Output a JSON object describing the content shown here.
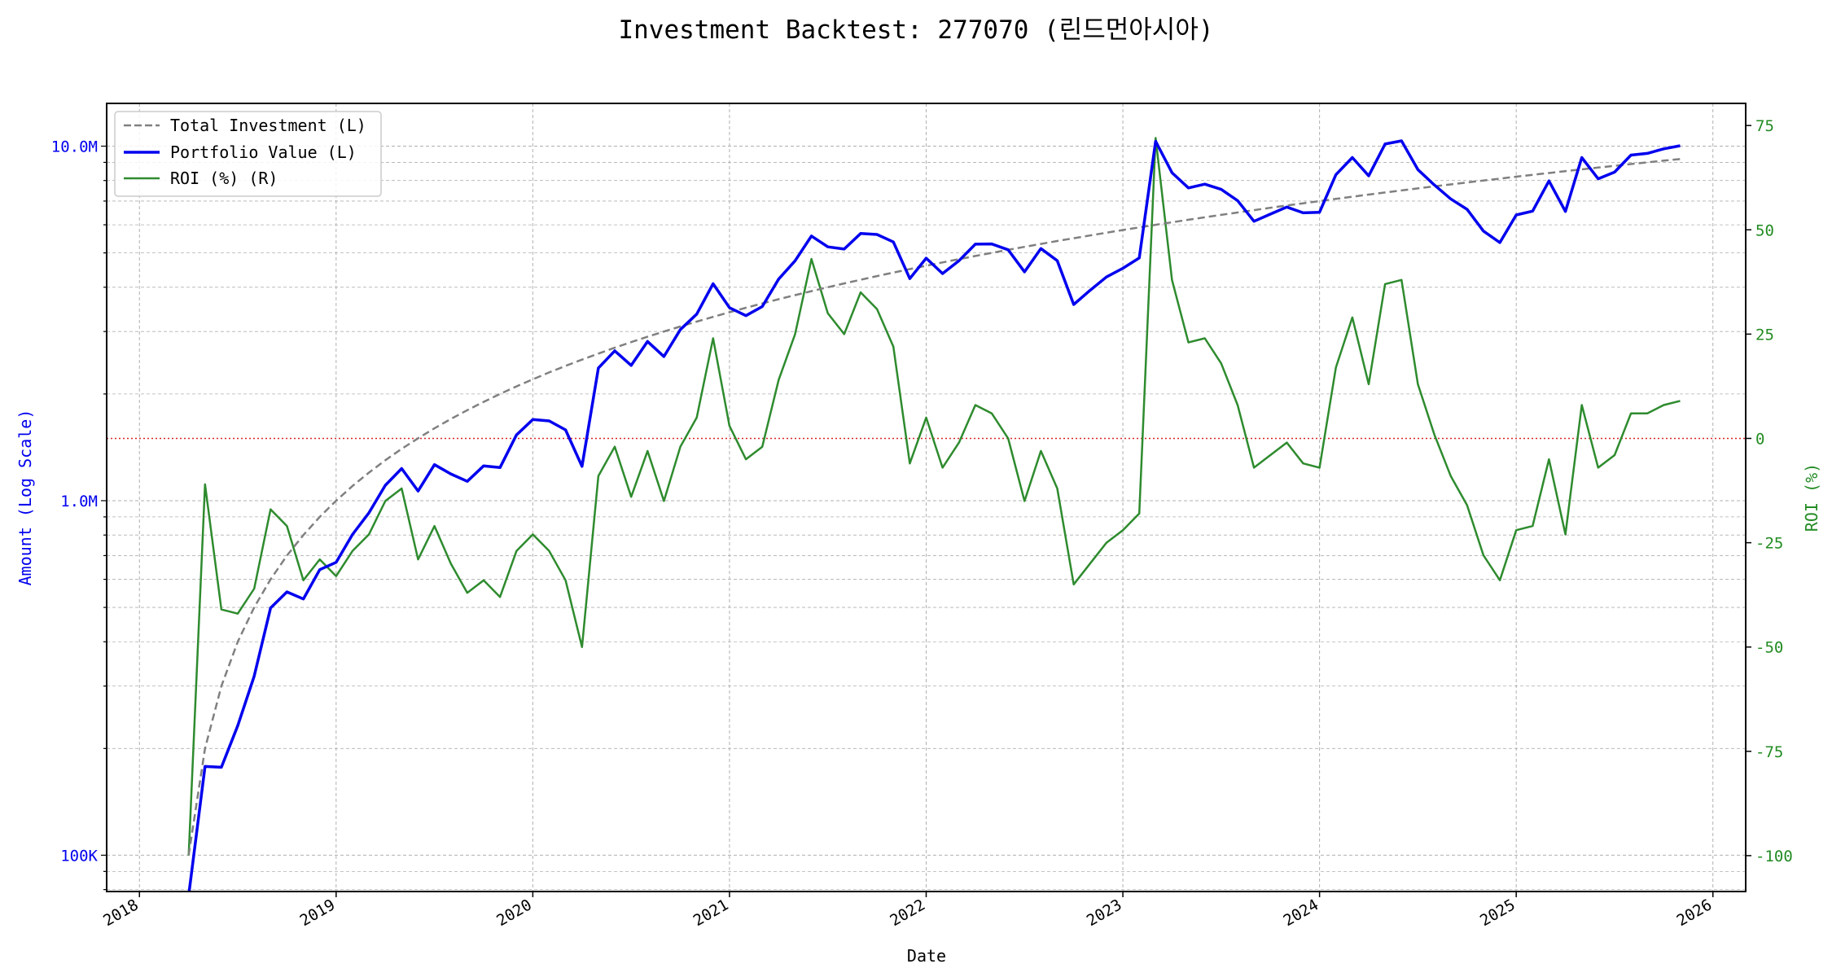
{
  "chart_data": {
    "type": "line",
    "title": "Investment Backtest: 277070 (린드먼아시아)",
    "xlabel": "Date",
    "ylabel_left": "Amount (Log Scale)",
    "ylabel_right": "ROI (%)",
    "left_scale": "log",
    "xlim": [
      "2017-11",
      "2026-03"
    ],
    "ylim_left": [
      79000,
      13200000
    ],
    "ylim_right": [
      -108.6,
      80.3
    ],
    "grid": true,
    "legend_placement": "top-left",
    "x_ticks": [
      "2018",
      "2019",
      "2020",
      "2021",
      "2022",
      "2023",
      "2024",
      "2025",
      "2026"
    ],
    "y_ticks_left": [
      {
        "value": 100000,
        "label": "100K"
      },
      {
        "value": 1000000,
        "label": "1.0M"
      },
      {
        "value": 10000000,
        "label": "10.0M"
      }
    ],
    "y_ticks_right": [
      -100,
      -75,
      -50,
      -25,
      0,
      25,
      50,
      75
    ],
    "reference_line": {
      "axis": "right",
      "value": 0,
      "color": "#d62728",
      "style": "dotted"
    },
    "colors": {
      "total_investment": "#808080",
      "portfolio_value": "#0000ee",
      "roi": "#2e8b2e",
      "left_axis": "#0000ee",
      "right_axis": "#228b22"
    },
    "x": [
      "2018-04",
      "2018-05",
      "2018-06",
      "2018-07",
      "2018-08",
      "2018-09",
      "2018-10",
      "2018-11",
      "2018-12",
      "2019-01",
      "2019-02",
      "2019-03",
      "2019-04",
      "2019-05",
      "2019-06",
      "2019-07",
      "2019-08",
      "2019-09",
      "2019-10",
      "2019-11",
      "2019-12",
      "2020-01",
      "2020-02",
      "2020-03",
      "2020-04",
      "2020-05",
      "2020-06",
      "2020-07",
      "2020-08",
      "2020-09",
      "2020-10",
      "2020-11",
      "2020-12",
      "2021-01",
      "2021-02",
      "2021-03",
      "2021-04",
      "2021-05",
      "2021-06",
      "2021-07",
      "2021-08",
      "2021-09",
      "2021-10",
      "2021-11",
      "2021-12",
      "2022-01",
      "2022-02",
      "2022-03",
      "2022-04",
      "2022-05",
      "2022-06",
      "2022-07",
      "2022-08",
      "2022-09",
      "2022-10",
      "2022-11",
      "2022-12",
      "2023-01",
      "2023-02",
      "2023-03",
      "2023-04",
      "2023-05",
      "2023-06",
      "2023-07",
      "2023-08",
      "2023-09",
      "2023-10",
      "2023-11",
      "2023-12",
      "2024-01",
      "2024-02",
      "2024-03",
      "2024-04",
      "2024-05",
      "2024-06",
      "2024-07",
      "2024-08",
      "2024-09",
      "2024-10",
      "2024-11",
      "2024-12",
      "2025-01",
      "2025-02",
      "2025-03",
      "2025-04",
      "2025-05",
      "2025-06",
      "2025-07",
      "2025-08",
      "2025-09",
      "2025-10",
      "2025-11"
    ],
    "series": [
      {
        "name": "Total Investment (L)",
        "axis": "left",
        "style": "dashed",
        "values": [
          100000,
          200000,
          300000,
          400000,
          500000,
          600000,
          700000,
          800000,
          900000,
          1000000,
          1100000,
          1200000,
          1300000,
          1400000,
          1500000,
          1600000,
          1700000,
          1800000,
          1900000,
          2000000,
          2100000,
          2200000,
          2300000,
          2400000,
          2500000,
          2600000,
          2700000,
          2800000,
          2900000,
          3000000,
          3100000,
          3200000,
          3300000,
          3400000,
          3500000,
          3600000,
          3700000,
          3800000,
          3900000,
          4000000,
          4100000,
          4200000,
          4300000,
          4400000,
          4500000,
          4600000,
          4700000,
          4800000,
          4900000,
          5000000,
          5100000,
          5200000,
          5300000,
          5400000,
          5500000,
          5600000,
          5700000,
          5800000,
          5900000,
          6000000,
          6100000,
          6200000,
          6300000,
          6400000,
          6500000,
          6600000,
          6700000,
          6800000,
          6900000,
          7000000,
          7100000,
          7200000,
          7300000,
          7400000,
          7500000,
          7600000,
          7700000,
          7800000,
          7900000,
          8000000,
          8100000,
          8200000,
          8300000,
          8400000,
          8500000,
          8600000,
          8700000,
          8800000,
          8900000,
          9000000,
          9100000,
          9200000
        ]
      },
      {
        "name": "Portfolio Value (L)",
        "axis": "left",
        "style": "solid",
        "values": [
          0,
          178000,
          177000,
          232000,
          320000,
          498000,
          553000,
          528000,
          639000,
          670000,
          803000,
          924000,
          1105000,
          1232000,
          1065000,
          1264000,
          1190000,
          1134000,
          1254000,
          1240000,
          1533000,
          1694000,
          1679000,
          1584000,
          1250000,
          2366000,
          2646000,
          2408000,
          2813000,
          2550000,
          3038000,
          3360000,
          4092000,
          3502000,
          3325000,
          3528000,
          4218000,
          4750000,
          5577000,
          5200000,
          5125000,
          5670000,
          5633000,
          5368000,
          4230000,
          4830000,
          4371000,
          4752000,
          5292000,
          5300000,
          5100000,
          4420000,
          5141000,
          4752000,
          3575000,
          3920000,
          4275000,
          4524000,
          4838000,
          10320000,
          8418000,
          7626000,
          7812000,
          7552000,
          7020000,
          6138000,
          6432000,
          6732000,
          6486000,
          6510000,
          8307000,
          9288000,
          8249000,
          10138000,
          10350000,
          8588000,
          7777000,
          7098000,
          6636000,
          5760000,
          5346000,
          6396000,
          6557000,
          7980000,
          6545000,
          9288000,
          8091000,
          8448000,
          9434000,
          9540000,
          9828000,
          10028000
        ]
      },
      {
        "name": "ROI (%) (R)",
        "axis": "right",
        "style": "solid",
        "values": [
          -100,
          -11,
          -41,
          -42,
          -36,
          -17,
          -21,
          -34,
          -29,
          -33,
          -27,
          -23,
          -15,
          -12,
          -29,
          -21,
          -30,
          -37,
          -34,
          -38,
          -27,
          -23,
          -27,
          -34,
          -50,
          -9,
          -2,
          -14,
          -3,
          -15,
          -2,
          5,
          24,
          3,
          -5,
          -2,
          14,
          25,
          43,
          30,
          25,
          35,
          31,
          22,
          -6,
          5,
          -7,
          -1,
          8,
          6,
          0,
          -15,
          -3,
          -12,
          -35,
          -30,
          -25,
          -22,
          -18,
          72,
          38,
          23,
          24,
          18,
          8,
          -7,
          -4,
          -1,
          -6,
          -7,
          17,
          29,
          13,
          37,
          38,
          13,
          1,
          -9,
          -16,
          -28,
          -34,
          -22,
          -21,
          -5,
          -23,
          8,
          -7,
          -4,
          6,
          6,
          8,
          9
        ]
      }
    ]
  }
}
